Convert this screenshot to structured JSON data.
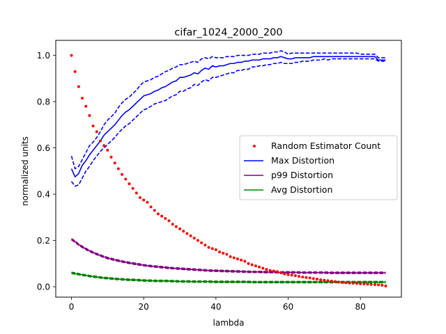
{
  "chart_data": {
    "type": "line",
    "title": "cifar_1024_2000_200",
    "xlabel": "lambda",
    "ylabel": "normalized units",
    "xlim": [
      -4.35,
      91.35
    ],
    "ylim": [
      -0.045,
      1.065
    ],
    "xticks": [
      0,
      20,
      40,
      60,
      80
    ],
    "xtick_labels": [
      "0",
      "20",
      "40",
      "60",
      "80"
    ],
    "yticks": [
      0.0,
      0.2,
      0.4,
      0.6,
      0.8,
      1.0
    ],
    "ytick_labels": [
      "0.0",
      "0.2",
      "0.4",
      "0.6",
      "0.8",
      "1.0"
    ],
    "grid": false,
    "legend_position": "center-right",
    "legend": [
      {
        "label": "Random Estimator Count",
        "style": "dots",
        "color": "#ff0000"
      },
      {
        "label": "Max Distortion",
        "style": "line",
        "color": "#0000ff"
      },
      {
        "label": "p99 Distortion",
        "style": "line",
        "color": "#800080"
      },
      {
        "label": "Avg Distortion",
        "style": "line",
        "color": "#008000"
      }
    ],
    "random_estimator_count": {
      "color": "#ff0000",
      "x": [
        0,
        1,
        2,
        3,
        4,
        5,
        6,
        7,
        8,
        9,
        10,
        11,
        12,
        13,
        14,
        15,
        16,
        17,
        18,
        19,
        20,
        21,
        22,
        23,
        24,
        25,
        26,
        27,
        28,
        29,
        30,
        31,
        32,
        33,
        34,
        35,
        36,
        37,
        38,
        39,
        40,
        41,
        42,
        43,
        44,
        45,
        46,
        47,
        48,
        49,
        50,
        51,
        52,
        53,
        54,
        55,
        56,
        57,
        58,
        59,
        60,
        61,
        62,
        63,
        64,
        65,
        66,
        67,
        68,
        69,
        70,
        71,
        72,
        73,
        74,
        75,
        76,
        77,
        78,
        79,
        80,
        81,
        82,
        83,
        84,
        85,
        86,
        87
      ],
      "y": [
        1.0,
        0.93,
        0.865,
        0.815,
        0.78,
        0.74,
        0.695,
        0.67,
        0.63,
        0.61,
        0.59,
        0.56,
        0.535,
        0.51,
        0.485,
        0.465,
        0.445,
        0.425,
        0.405,
        0.385,
        0.375,
        0.365,
        0.345,
        0.33,
        0.315,
        0.305,
        0.295,
        0.285,
        0.27,
        0.26,
        0.25,
        0.24,
        0.23,
        0.22,
        0.21,
        0.2,
        0.19,
        0.18,
        0.17,
        0.165,
        0.16,
        0.15,
        0.145,
        0.14,
        0.13,
        0.125,
        0.12,
        0.115,
        0.11,
        0.1,
        0.095,
        0.09,
        0.085,
        0.08,
        0.075,
        0.07,
        0.068,
        0.065,
        0.06,
        0.055,
        0.052,
        0.05,
        0.048,
        0.045,
        0.042,
        0.04,
        0.038,
        0.035,
        0.033,
        0.03,
        0.028,
        0.026,
        0.024,
        0.022,
        0.02,
        0.018,
        0.017,
        0.016,
        0.015,
        0.014,
        0.013,
        0.012,
        0.011,
        0.01,
        0.009,
        0.008,
        0.006,
        0.003
      ]
    },
    "max_distortion": {
      "color": "#0000ff",
      "x": [
        0,
        1,
        2,
        3,
        4,
        5,
        6,
        7,
        8,
        9,
        10,
        11,
        12,
        13,
        14,
        15,
        16,
        17,
        18,
        19,
        20,
        21,
        22,
        23,
        24,
        25,
        26,
        27,
        28,
        29,
        30,
        31,
        32,
        33,
        34,
        35,
        36,
        37,
        38,
        39,
        40,
        41,
        42,
        43,
        44,
        45,
        46,
        47,
        48,
        49,
        50,
        51,
        52,
        53,
        54,
        55,
        56,
        57,
        58,
        59,
        60,
        61,
        62,
        63,
        64,
        65,
        66,
        67,
        68,
        69,
        70,
        71,
        72,
        73,
        74,
        75,
        76,
        77,
        78,
        79,
        80,
        81,
        82,
        83,
        84,
        85,
        86,
        87
      ],
      "mean": [
        0.51,
        0.475,
        0.49,
        0.525,
        0.545,
        0.57,
        0.59,
        0.61,
        0.63,
        0.655,
        0.67,
        0.685,
        0.7,
        0.72,
        0.74,
        0.755,
        0.765,
        0.78,
        0.795,
        0.81,
        0.825,
        0.83,
        0.835,
        0.845,
        0.85,
        0.86,
        0.865,
        0.875,
        0.885,
        0.89,
        0.905,
        0.905,
        0.91,
        0.915,
        0.925,
        0.92,
        0.935,
        0.945,
        0.94,
        0.955,
        0.95,
        0.955,
        0.955,
        0.96,
        0.965,
        0.965,
        0.97,
        0.97,
        0.975,
        0.975,
        0.98,
        0.98,
        0.98,
        0.985,
        0.985,
        0.985,
        0.99,
        0.99,
        0.995,
        0.99,
        0.985,
        0.985,
        0.99,
        0.99,
        0.99,
        0.99,
        0.99,
        0.995,
        0.995,
        0.995,
        0.995,
        0.995,
        0.995,
        0.995,
        0.995,
        0.995,
        0.995,
        0.995,
        0.995,
        0.995,
        0.995,
        0.995,
        0.995,
        0.995,
        0.995,
        0.98,
        0.98,
        0.98
      ],
      "upper": [
        0.565,
        0.51,
        0.52,
        0.55,
        0.58,
        0.61,
        0.625,
        0.645,
        0.67,
        0.7,
        0.72,
        0.735,
        0.75,
        0.775,
        0.795,
        0.81,
        0.82,
        0.835,
        0.85,
        0.87,
        0.885,
        0.89,
        0.895,
        0.905,
        0.91,
        0.92,
        0.93,
        0.935,
        0.945,
        0.95,
        0.96,
        0.96,
        0.965,
        0.97,
        0.975,
        0.97,
        0.985,
        0.99,
        0.985,
        0.995,
        0.99,
        0.99,
        0.99,
        0.995,
        0.995,
        0.995,
        1.0,
        1.0,
        1.0,
        1.0,
        1.005,
        1.005,
        1.005,
        1.01,
        1.01,
        1.01,
        1.015,
        1.015,
        1.02,
        1.015,
        1.005,
        1.01,
        1.01,
        1.01,
        1.01,
        1.01,
        1.01,
        1.01,
        1.01,
        1.01,
        1.01,
        1.01,
        1.01,
        1.01,
        1.01,
        1.01,
        1.01,
        1.01,
        1.01,
        1.01,
        1.005,
        1.005,
        1.005,
        1.005,
        1.005,
        0.99,
        0.99,
        0.99
      ],
      "lower": [
        0.455,
        0.435,
        0.44,
        0.47,
        0.5,
        0.52,
        0.545,
        0.565,
        0.585,
        0.6,
        0.615,
        0.63,
        0.645,
        0.665,
        0.68,
        0.695,
        0.705,
        0.72,
        0.735,
        0.75,
        0.765,
        0.77,
        0.78,
        0.79,
        0.795,
        0.8,
        0.805,
        0.815,
        0.825,
        0.83,
        0.845,
        0.845,
        0.855,
        0.86,
        0.875,
        0.87,
        0.885,
        0.895,
        0.89,
        0.905,
        0.905,
        0.91,
        0.915,
        0.92,
        0.925,
        0.925,
        0.935,
        0.935,
        0.94,
        0.94,
        0.95,
        0.95,
        0.955,
        0.955,
        0.96,
        0.96,
        0.965,
        0.965,
        0.97,
        0.965,
        0.965,
        0.965,
        0.97,
        0.97,
        0.975,
        0.975,
        0.975,
        0.98,
        0.98,
        0.98,
        0.985,
        0.98,
        0.985,
        0.985,
        0.985,
        0.985,
        0.985,
        0.985,
        0.985,
        0.985,
        0.985,
        0.985,
        0.985,
        0.985,
        0.985,
        0.975,
        0.975,
        0.975
      ]
    },
    "p99_distortion": {
      "color": "#800080",
      "x": [
        0,
        1,
        2,
        3,
        4,
        5,
        6,
        7,
        8,
        9,
        10,
        12,
        14,
        16,
        18,
        20,
        22,
        24,
        26,
        28,
        30,
        32,
        34,
        36,
        38,
        40,
        42,
        44,
        46,
        48,
        50,
        52,
        54,
        56,
        58,
        60,
        62,
        64,
        66,
        68,
        70,
        72,
        74,
        76,
        78,
        80,
        82,
        84,
        86,
        87
      ],
      "y": [
        0.205,
        0.195,
        0.182,
        0.172,
        0.163,
        0.155,
        0.148,
        0.141,
        0.135,
        0.129,
        0.124,
        0.116,
        0.109,
        0.103,
        0.098,
        0.093,
        0.089,
        0.086,
        0.083,
        0.08,
        0.078,
        0.076,
        0.074,
        0.072,
        0.07,
        0.069,
        0.068,
        0.067,
        0.066,
        0.065,
        0.064,
        0.064,
        0.063,
        0.063,
        0.062,
        0.062,
        0.062,
        0.061,
        0.061,
        0.061,
        0.061,
        0.06,
        0.06,
        0.06,
        0.06,
        0.06,
        0.06,
        0.06,
        0.06,
        0.06
      ]
    },
    "avg_distortion": {
      "color": "#008000",
      "x": [
        0,
        1,
        2,
        3,
        4,
        5,
        6,
        7,
        8,
        9,
        10,
        12,
        14,
        16,
        18,
        20,
        22,
        24,
        26,
        28,
        30,
        32,
        34,
        36,
        38,
        40,
        42,
        44,
        46,
        48,
        50,
        52,
        54,
        56,
        58,
        60,
        62,
        64,
        66,
        68,
        70,
        72,
        74,
        76,
        78,
        80,
        82,
        84,
        86,
        87
      ],
      "y": [
        0.06,
        0.057,
        0.054,
        0.051,
        0.049,
        0.046,
        0.044,
        0.042,
        0.04,
        0.038,
        0.037,
        0.034,
        0.032,
        0.03,
        0.029,
        0.027,
        0.026,
        0.025,
        0.025,
        0.024,
        0.023,
        0.023,
        0.022,
        0.022,
        0.022,
        0.021,
        0.021,
        0.021,
        0.021,
        0.021,
        0.02,
        0.02,
        0.02,
        0.02,
        0.02,
        0.02,
        0.02,
        0.02,
        0.02,
        0.02,
        0.02,
        0.02,
        0.02,
        0.02,
        0.02,
        0.02,
        0.02,
        0.02,
        0.02,
        0.02
      ]
    }
  }
}
